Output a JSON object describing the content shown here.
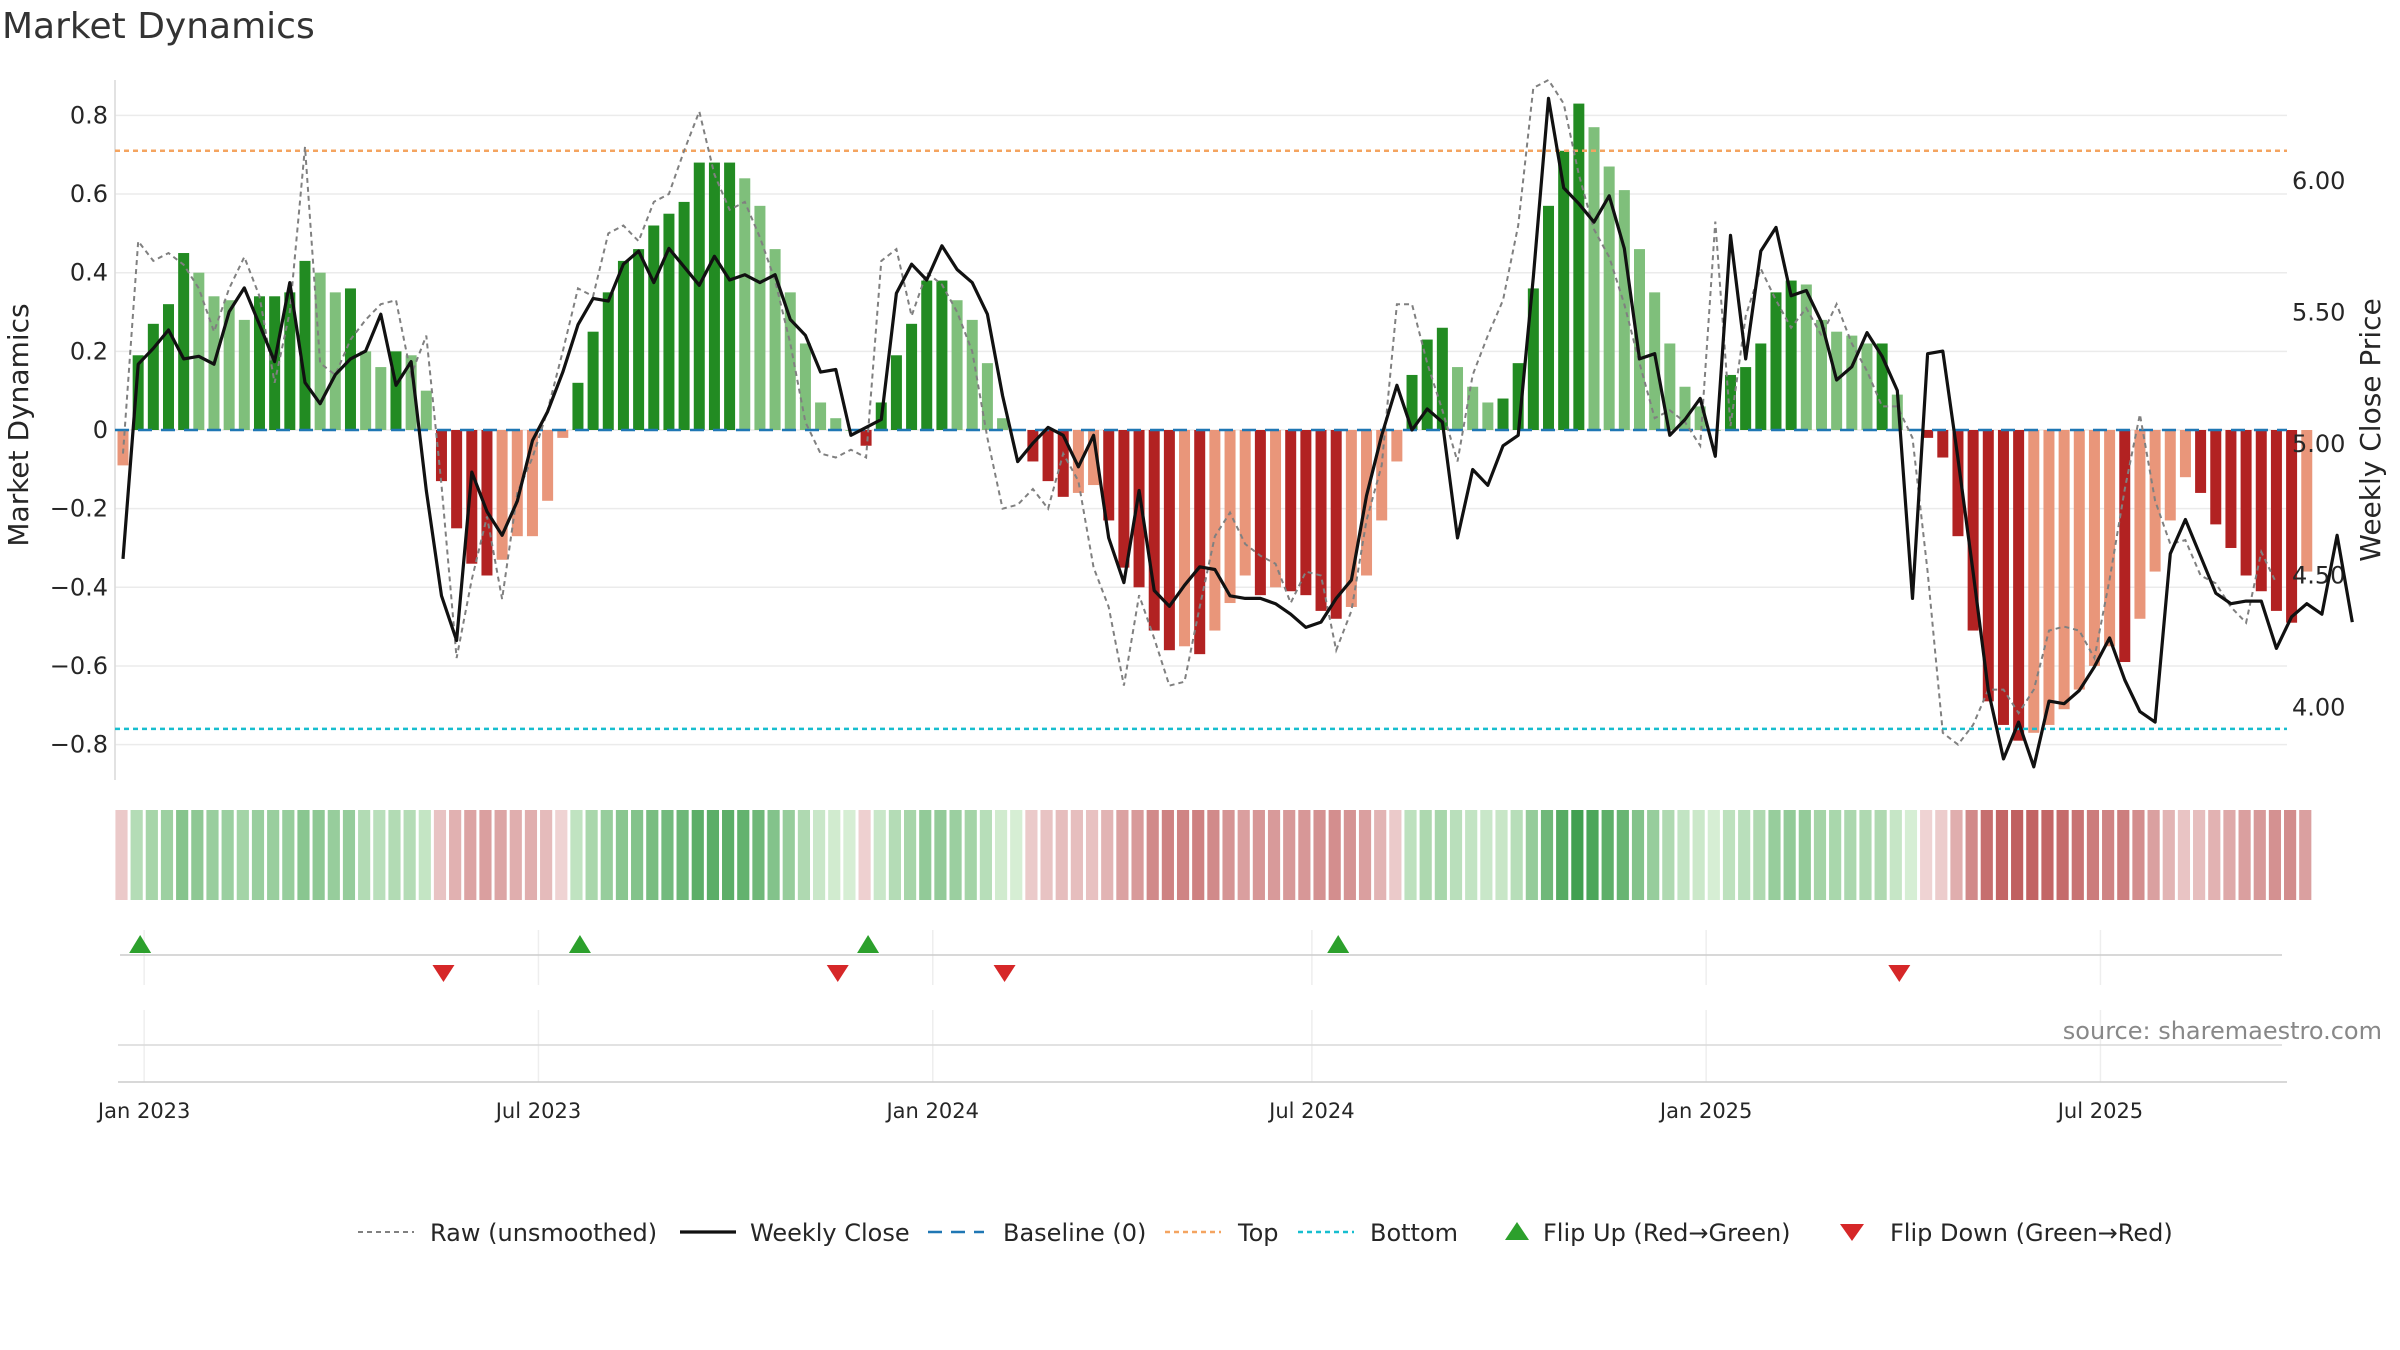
{
  "chart_data": {
    "type": "bar",
    "title": "Market Dynamics",
    "ylabel": "Market Dynamics",
    "y2label": "Weekly Close Price",
    "ylim": [
      -0.89,
      0.89
    ],
    "y_ticks": [
      -0.8,
      -0.6,
      -0.4,
      -0.2,
      0,
      0.2,
      0.4,
      0.6,
      0.8
    ],
    "y_tick_labels": [
      "−0.8",
      "−0.6",
      "−0.4",
      "−0.2",
      "0",
      "0.2",
      "0.4",
      "0.6",
      "0.8"
    ],
    "y2lim": [
      3.72,
      6.38
    ],
    "y2_ticks": [
      4.0,
      4.5,
      5.0,
      5.5,
      6.0
    ],
    "y2_tick_labels": [
      "4.00",
      "4.50",
      "5.00",
      "5.50",
      "6.00"
    ],
    "x_tick_labels": [
      "Jan 2023",
      "Jul 2023",
      "Jan 2024",
      "Jul 2024",
      "Jan 2025",
      "Jul 2025"
    ],
    "x_tick_weeks": [
      1,
      27,
      53,
      78,
      104,
      130
    ],
    "top_level": 0.71,
    "bottom_level": -0.76,
    "baseline": 0,
    "grid": true,
    "legend_position": "bottom",
    "legend": [
      {
        "label": "Raw (unsmoothed)",
        "style": "raw"
      },
      {
        "label": "Weekly Close",
        "style": "close"
      },
      {
        "label": "Baseline (0)",
        "style": "baseline"
      },
      {
        "label": "Top",
        "style": "top"
      },
      {
        "label": "Bottom",
        "style": "bottom"
      },
      {
        "label": "Flip Up (Red→Green)",
        "style": "flip-up"
      },
      {
        "label": "Flip Down (Green→Red)",
        "style": "flip-down"
      }
    ],
    "series": [
      {
        "name": "Market Dynamics",
        "values": [
          -0.09,
          0.19,
          0.27,
          0.32,
          0.45,
          0.4,
          0.34,
          0.33,
          0.28,
          0.34,
          0.34,
          0.35,
          0.43,
          0.4,
          0.35,
          0.36,
          0.2,
          0.16,
          0.2,
          0.19,
          0.1,
          -0.13,
          -0.25,
          -0.34,
          -0.37,
          -0.33,
          -0.27,
          -0.27,
          -0.18,
          -0.02,
          0.12,
          0.25,
          0.35,
          0.43,
          0.46,
          0.52,
          0.55,
          0.58,
          0.68,
          0.68,
          0.68,
          0.64,
          0.57,
          0.46,
          0.35,
          0.22,
          0.07,
          0.03,
          0.0,
          -0.04,
          0.07,
          0.19,
          0.27,
          0.38,
          0.38,
          0.33,
          0.28,
          0.17,
          0.03,
          0.0,
          -0.08,
          -0.13,
          -0.17,
          -0.16,
          -0.14,
          -0.23,
          -0.35,
          -0.4,
          -0.51,
          -0.56,
          -0.55,
          -0.57,
          -0.51,
          -0.44,
          -0.37,
          -0.42,
          -0.4,
          -0.41,
          -0.42,
          -0.46,
          -0.48,
          -0.45,
          -0.37,
          -0.23,
          -0.08,
          0.14,
          0.23,
          0.26,
          0.16,
          0.11,
          0.07,
          0.08,
          0.17,
          0.36,
          0.57,
          0.71,
          0.83,
          0.77,
          0.67,
          0.61,
          0.46,
          0.35,
          0.22,
          0.11,
          0.06,
          0.0,
          0.14,
          0.16,
          0.22,
          0.35,
          0.38,
          0.37,
          0.28,
          0.25,
          0.24,
          0.22,
          0.22,
          0.09,
          0.0,
          -0.02,
          -0.07,
          -0.27,
          -0.51,
          -0.69,
          -0.75,
          -0.79,
          -0.77,
          -0.75,
          -0.71,
          -0.66,
          -0.6,
          -0.55,
          -0.59,
          -0.48,
          -0.36,
          -0.23,
          -0.12,
          -0.16,
          -0.24,
          -0.3,
          -0.37,
          -0.41,
          -0.46,
          -0.49,
          -0.36
        ]
      },
      {
        "name": "Raw (unsmoothed)",
        "values": [
          -0.06,
          0.48,
          0.43,
          0.45,
          0.42,
          0.36,
          0.25,
          0.36,
          0.44,
          0.34,
          0.12,
          0.3,
          0.72,
          0.17,
          0.14,
          0.23,
          0.28,
          0.32,
          0.33,
          0.14,
          0.24,
          -0.14,
          -0.58,
          -0.38,
          -0.22,
          -0.43,
          -0.16,
          -0.07,
          0.05,
          0.2,
          0.36,
          0.34,
          0.5,
          0.52,
          0.48,
          0.58,
          0.6,
          0.71,
          0.81,
          0.65,
          0.56,
          0.58,
          0.49,
          0.38,
          0.22,
          0.02,
          -0.06,
          -0.07,
          -0.05,
          -0.07,
          0.43,
          0.46,
          0.29,
          0.4,
          0.37,
          0.3,
          0.2,
          -0.02,
          -0.2,
          -0.19,
          -0.15,
          -0.2,
          -0.06,
          -0.13,
          -0.35,
          -0.45,
          -0.65,
          -0.42,
          -0.53,
          -0.65,
          -0.64,
          -0.45,
          -0.27,
          -0.21,
          -0.29,
          -0.32,
          -0.34,
          -0.44,
          -0.36,
          -0.37,
          -0.56,
          -0.46,
          -0.23,
          -0.09,
          0.32,
          0.32,
          0.17,
          0.05,
          -0.08,
          0.14,
          0.24,
          0.33,
          0.52,
          0.87,
          0.89,
          0.83,
          0.65,
          0.51,
          0.44,
          0.32,
          0.17,
          0.03,
          0.05,
          0.02,
          -0.04,
          0.53,
          0.01,
          0.29,
          0.41,
          0.33,
          0.26,
          0.31,
          0.24,
          0.32,
          0.22,
          0.15,
          0.06,
          0.06,
          -0.02,
          -0.36,
          -0.77,
          -0.8,
          -0.75,
          -0.66,
          -0.66,
          -0.72,
          -0.66,
          -0.51,
          -0.5,
          -0.51,
          -0.58,
          -0.38,
          -0.15,
          0.04,
          -0.18,
          -0.29,
          -0.28,
          -0.37,
          -0.39,
          -0.45,
          -0.49,
          -0.31,
          -0.39
        ]
      },
      {
        "name": "Weekly Close",
        "values": [
          4.56,
          5.3,
          5.36,
          5.43,
          5.32,
          5.33,
          5.3,
          5.5,
          5.59,
          5.45,
          5.31,
          5.61,
          5.23,
          5.15,
          5.26,
          5.32,
          5.35,
          5.49,
          5.22,
          5.31,
          4.82,
          4.42,
          4.25,
          4.89,
          4.74,
          4.65,
          4.78,
          5.01,
          5.12,
          5.27,
          5.45,
          5.55,
          5.54,
          5.68,
          5.73,
          5.61,
          5.74,
          5.67,
          5.6,
          5.71,
          5.62,
          5.64,
          5.61,
          5.64,
          5.47,
          5.41,
          5.27,
          5.28,
          5.03,
          5.06,
          5.09,
          5.57,
          5.68,
          5.62,
          5.75,
          5.66,
          5.61,
          5.49,
          5.18,
          4.93,
          5.0,
          5.06,
          5.03,
          4.91,
          5.03,
          4.64,
          4.47,
          4.82,
          4.44,
          4.38,
          4.46,
          4.53,
          4.52,
          4.42,
          4.41,
          4.41,
          4.39,
          4.35,
          4.3,
          4.32,
          4.41,
          4.48,
          4.8,
          5.03,
          5.22,
          5.05,
          5.13,
          5.08,
          4.64,
          4.9,
          4.84,
          4.99,
          5.03,
          5.63,
          6.31,
          5.97,
          5.91,
          5.84,
          5.94,
          5.74,
          5.32,
          5.34,
          5.03,
          5.09,
          5.17,
          4.95,
          5.79,
          5.32,
          5.73,
          5.82,
          5.56,
          5.58,
          5.46,
          5.24,
          5.29,
          5.42,
          5.33,
          5.2,
          4.41,
          5.34,
          5.35,
          4.94,
          4.51,
          4.06,
          3.8,
          3.94,
          3.77,
          4.02,
          4.01,
          4.06,
          4.15,
          4.26,
          4.1,
          3.98,
          3.94,
          4.58,
          4.71,
          4.57,
          4.43,
          4.39,
          4.4,
          4.4,
          4.22,
          4.34,
          4.39,
          4.35,
          4.65,
          4.32
        ]
      }
    ],
    "bands": [
      -0.09,
      0.19,
      0.27,
      0.32,
      0.45,
      0.4,
      0.34,
      0.33,
      0.28,
      0.34,
      0.34,
      0.35,
      0.43,
      0.4,
      0.35,
      0.36,
      0.2,
      0.16,
      0.2,
      0.19,
      0.1,
      -0.13,
      -0.25,
      -0.34,
      -0.37,
      -0.33,
      -0.27,
      -0.27,
      -0.18,
      -0.02,
      0.12,
      0.25,
      0.35,
      0.43,
      0.46,
      0.52,
      0.55,
      0.58,
      0.68,
      0.68,
      0.68,
      0.64,
      0.57,
      0.46,
      0.35,
      0.22,
      0.07,
      0.03,
      0.0,
      -0.04,
      0.07,
      0.19,
      0.27,
      0.38,
      0.38,
      0.33,
      0.28,
      0.17,
      0.03,
      0.0,
      -0.08,
      -0.13,
      -0.17,
      -0.16,
      -0.14,
      -0.23,
      -0.35,
      -0.4,
      -0.51,
      -0.56,
      -0.55,
      -0.57,
      -0.51,
      -0.44,
      -0.37,
      -0.42,
      -0.4,
      -0.41,
      -0.42,
      -0.46,
      -0.48,
      -0.45,
      -0.37,
      -0.23,
      -0.08,
      0.14,
      0.23,
      0.26,
      0.16,
      0.11,
      0.07,
      0.08,
      0.17,
      0.36,
      0.57,
      0.71,
      0.83,
      0.77,
      0.67,
      0.61,
      0.46,
      0.35,
      0.22,
      0.11,
      0.06,
      0.0,
      0.14,
      0.16,
      0.22,
      0.35,
      0.38,
      0.37,
      0.28,
      0.25,
      0.24,
      0.22,
      0.22,
      0.09,
      0.0,
      -0.02,
      -0.07,
      -0.27,
      -0.51,
      -0.69,
      -0.75,
      -0.79,
      -0.77,
      -0.75,
      -0.71,
      -0.66,
      -0.6,
      -0.55,
      -0.59,
      -0.48,
      -0.36,
      -0.23,
      -0.12,
      -0.16,
      -0.24,
      -0.3,
      -0.37,
      -0.41,
      -0.46,
      -0.49,
      -0.36
    ],
    "flips_up": [
      1,
      30,
      49,
      80
    ],
    "flips_down": [
      21,
      47,
      58,
      117
    ],
    "colors": {
      "green_strong": "#228b22",
      "green_light": "#7fbf7b",
      "red_strong": "#b22222",
      "red_light": "#e9967a",
      "raw_line": "#808080",
      "close_line": "#111111",
      "baseline": "#1f77b4",
      "top": "#f4a460",
      "bottom": "#17becf",
      "flip_up": "#2ca02c",
      "flip_down": "#d62728"
    }
  },
  "source_text": "source: sharemaestro.com"
}
